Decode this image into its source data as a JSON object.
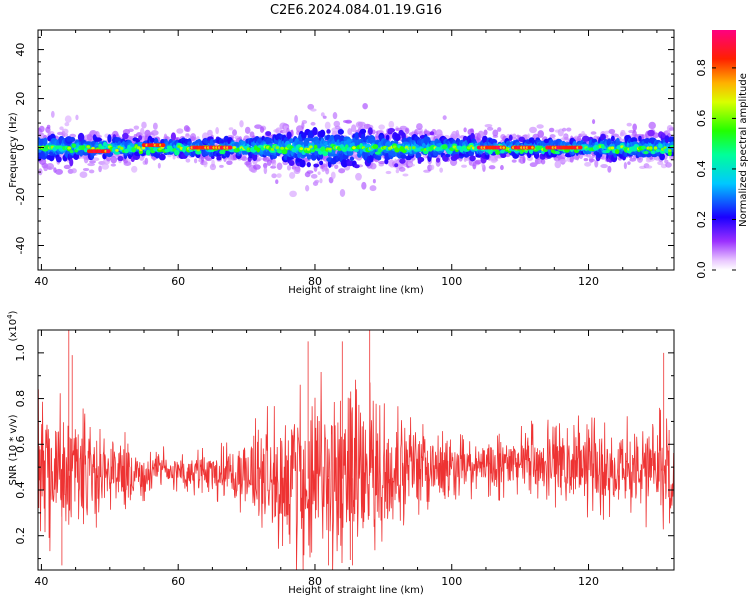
{
  "title": "C2E6.2024.084.01.19.G16",
  "chart_data": [
    {
      "type": "heatmap",
      "name": "spectrogram",
      "xlabel": "Height of straight line (km)",
      "ylabel": "Frequency (Hz)",
      "xlim": [
        39.5,
        132.5
      ],
      "ylim": [
        -50,
        48
      ],
      "xticks": [
        40,
        60,
        80,
        100,
        120
      ],
      "yticks": [
        -40,
        -20,
        0,
        20,
        40
      ],
      "colorbar": {
        "label": "Normalized spectral amplitude",
        "range": [
          0.0,
          0.95
        ],
        "ticks": [
          0.0,
          0.2,
          0.4,
          0.6,
          0.8
        ],
        "tick_labels": [
          "0.0",
          "0.2",
          "0.4",
          "0.6",
          "0.8"
        ],
        "colors": [
          "#ffffff",
          "#7f00ff",
          "#0000ff",
          "#00ffff",
          "#00ff00",
          "#ffff00",
          "#ff7f00",
          "#ff0000",
          "#ff0080"
        ]
      },
      "band_center_hz": 0,
      "band_halfwidth_hz": [
        {
          "x": 40,
          "w": 8
        },
        {
          "x": 50,
          "w": 6
        },
        {
          "x": 60,
          "w": 5
        },
        {
          "x": 70,
          "w": 6
        },
        {
          "x": 78,
          "w": 10
        },
        {
          "x": 85,
          "w": 11
        },
        {
          "x": 92,
          "w": 8
        },
        {
          "x": 100,
          "w": 6
        },
        {
          "x": 110,
          "w": 5
        },
        {
          "x": 120,
          "w": 5
        },
        {
          "x": 126,
          "w": 7
        },
        {
          "x": 132,
          "w": 6
        }
      ],
      "peak_segments": [
        {
          "x0": 47,
          "x1": 50,
          "y": -1.5
        },
        {
          "x0": 55,
          "x1": 58,
          "y": 1
        },
        {
          "x0": 62,
          "x1": 68,
          "y": 0
        },
        {
          "x0": 104,
          "x1": 108,
          "y": 0
        },
        {
          "x0": 109,
          "x1": 112,
          "y": 0
        },
        {
          "x0": 114,
          "x1": 119,
          "y": 0
        }
      ]
    },
    {
      "type": "line",
      "name": "snr",
      "xlabel": "Height of straight line (km)",
      "ylabel": "SNR (10 * v/v)",
      "y_multiplier": "(x10^4)",
      "y_multiplier_base": "(x10",
      "y_multiplier_exp": "4",
      "y_multiplier_close": ")",
      "xlim": [
        39.5,
        132.5
      ],
      "ylim": [
        0.05,
        1.1
      ],
      "xticks": [
        40,
        60,
        80,
        100,
        120
      ],
      "yticks": [
        0.2,
        0.4,
        0.6,
        0.8,
        1.0
      ],
      "ytick_labels": [
        "0.2",
        "0.4",
        "0.6",
        "0.8",
        "1.0"
      ],
      "color": "#ee3333",
      "envelope": [
        {
          "x": 40,
          "mean": 0.5,
          "spread": 0.25
        },
        {
          "x": 45,
          "mean": 0.48,
          "spread": 0.22
        },
        {
          "x": 50,
          "mean": 0.5,
          "spread": 0.15
        },
        {
          "x": 55,
          "mean": 0.47,
          "spread": 0.1
        },
        {
          "x": 60,
          "mean": 0.48,
          "spread": 0.06
        },
        {
          "x": 65,
          "mean": 0.48,
          "spread": 0.08
        },
        {
          "x": 70,
          "mean": 0.46,
          "spread": 0.15
        },
        {
          "x": 75,
          "mean": 0.45,
          "spread": 0.25
        },
        {
          "x": 80,
          "mean": 0.45,
          "spread": 0.32
        },
        {
          "x": 85,
          "mean": 0.45,
          "spread": 0.32
        },
        {
          "x": 90,
          "mean": 0.47,
          "spread": 0.25
        },
        {
          "x": 95,
          "mean": 0.5,
          "spread": 0.15
        },
        {
          "x": 100,
          "mean": 0.5,
          "spread": 0.1
        },
        {
          "x": 105,
          "mean": 0.51,
          "spread": 0.1
        },
        {
          "x": 110,
          "mean": 0.52,
          "spread": 0.12
        },
        {
          "x": 115,
          "mean": 0.52,
          "spread": 0.13
        },
        {
          "x": 120,
          "mean": 0.5,
          "spread": 0.16
        },
        {
          "x": 125,
          "mean": 0.5,
          "spread": 0.15
        },
        {
          "x": 132,
          "mean": 0.48,
          "spread": 0.2
        }
      ],
      "spikes": [
        {
          "x": 44,
          "y": 1.1
        },
        {
          "x": 44.5,
          "y": 0.99
        },
        {
          "x": 84,
          "y": 1.05
        },
        {
          "x": 88,
          "y": 1.1
        },
        {
          "x": 85.5,
          "y": 0.07
        },
        {
          "x": 43,
          "y": 0.07
        },
        {
          "x": 131,
          "y": 1.0
        },
        {
          "x": 79,
          "y": 1.05
        },
        {
          "x": 82,
          "y": 0.07
        }
      ]
    }
  ]
}
